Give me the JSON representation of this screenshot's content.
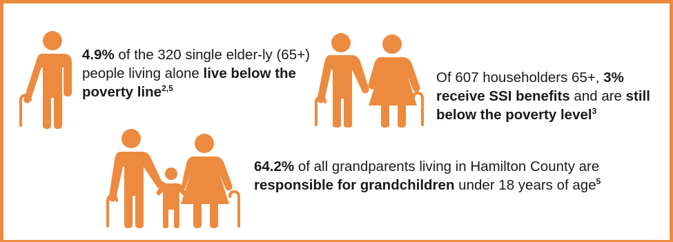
{
  "theme": {
    "accent": "#ec8a3f",
    "text": "#1a1a1a"
  },
  "icons": {
    "elderly_man": "elderly-man-with-cane-icon",
    "elderly_couple": "elderly-couple-icon",
    "family": "grandparents-with-grandchild-icon"
  },
  "stats": [
    {
      "pct": "4.9%",
      "mid": " of the 320 single elder-ly (65+) people living alone ",
      "bold": "live below the poverty line",
      "sup": "2,5"
    },
    {
      "pre": "Of 607 householders 65+, ",
      "pct": "3%",
      "space": " ",
      "bold1": "receive SSI benefits",
      "mid": " and are ",
      "bold2": "still below the poverty level",
      "sup": "3"
    },
    {
      "pct": "64.2%",
      "mid": " of all grandparents living in Hamilton County are ",
      "bold": "responsible for grandchildren",
      "post": " under 18 years of age",
      "sup": "5"
    }
  ]
}
